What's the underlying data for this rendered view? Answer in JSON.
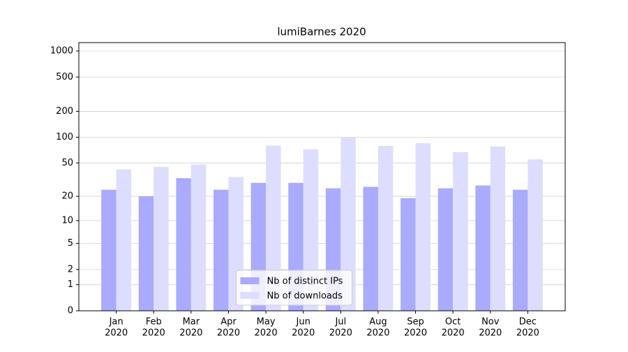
{
  "chart_data": {
    "type": "bar",
    "title": "lumiBarnes 2020",
    "categories": [
      [
        "Jan",
        "2020"
      ],
      [
        "Feb",
        "2020"
      ],
      [
        "Mar",
        "2020"
      ],
      [
        "Apr",
        "2020"
      ],
      [
        "May",
        "2020"
      ],
      [
        "Jun",
        "2020"
      ],
      [
        "Jul",
        "2020"
      ],
      [
        "Aug",
        "2020"
      ],
      [
        "Sep",
        "2020"
      ],
      [
        "Oct",
        "2020"
      ],
      [
        "Nov",
        "2020"
      ],
      [
        "Dec",
        "2020"
      ]
    ],
    "series": [
      {
        "name": "Nb of distinct IPs",
        "color": "#aaaaff",
        "values": [
          24,
          20,
          33,
          24,
          29,
          29,
          25,
          26,
          19,
          25,
          27,
          24
        ]
      },
      {
        "name": "Nb of downloads",
        "color": "#ddddff",
        "values": [
          42,
          45,
          48,
          34,
          80,
          72,
          100,
          79,
          85,
          67,
          78,
          55
        ]
      }
    ],
    "yscale": "log1p",
    "ylim": [
      0,
      1250
    ],
    "yticks": [
      0,
      1,
      2,
      5,
      10,
      20,
      50,
      100,
      200,
      500,
      1000
    ],
    "grid": true,
    "legend": "lower center"
  }
}
